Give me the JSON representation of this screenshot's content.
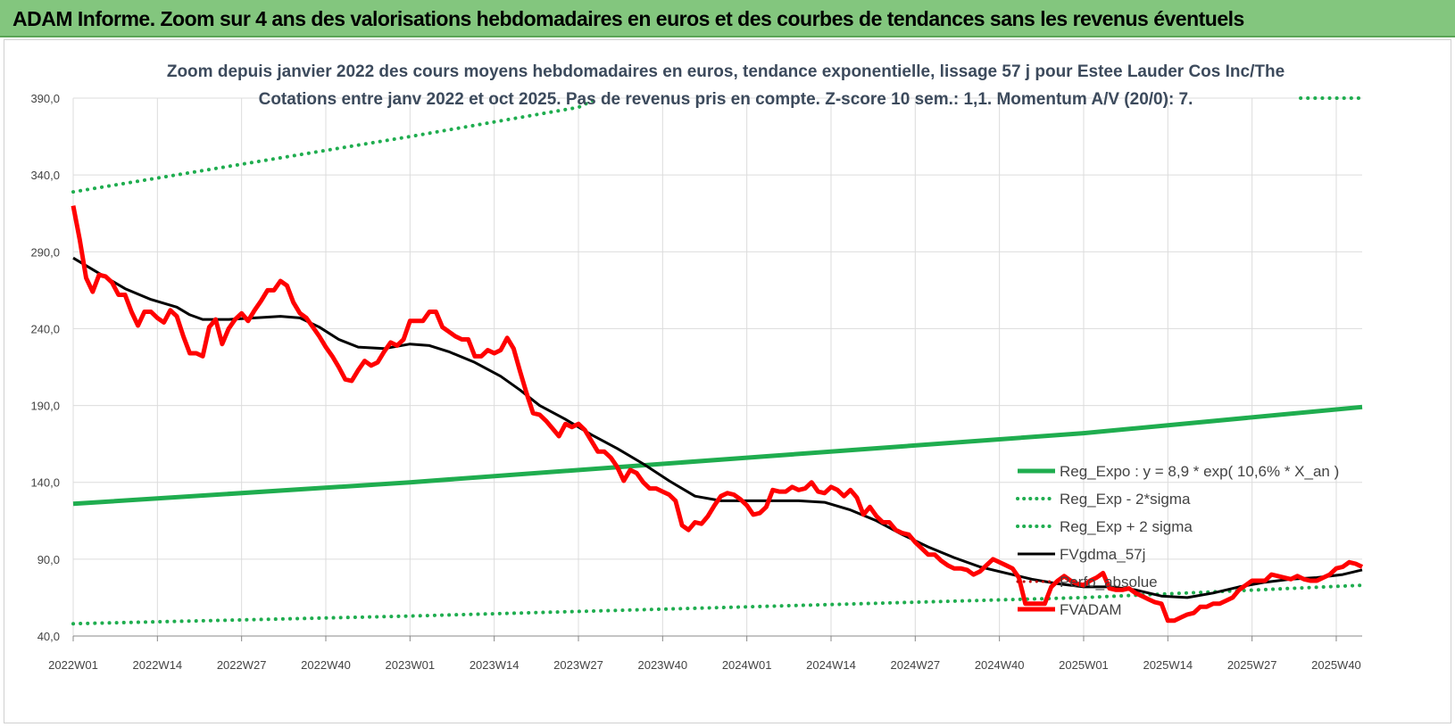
{
  "header": {
    "title": "ADAM Informe. Zoom sur 4 ans des valorisations hebdomadaires en euros et des courbes de tendances sans les revenus éventuels"
  },
  "chart_data": {
    "type": "line",
    "title": "Zoom depuis janvier 2022 des cours moyens hebdomadaires en euros, tendance exponentielle, lissage 57 j pour Estee Lauder Cos Inc/The",
    "subtitle": "Cotations entre janv 2022 et oct 2025. Pas de revenus pris en compte. Z-score 10 sem.: 1,1. Momentum A/V (20/0): 7.",
    "xlabel": "",
    "ylabel": "",
    "ylim": [
      40,
      390
    ],
    "yticks": [
      "40,0",
      "90,0",
      "140,0",
      "190,0",
      "240,0",
      "290,0",
      "340,0",
      "390,0"
    ],
    "xlim": [
      0,
      199
    ],
    "xticks": [
      {
        "label": "2022W01",
        "i": 0
      },
      {
        "label": "2022W14",
        "i": 13
      },
      {
        "label": "2022W27",
        "i": 26
      },
      {
        "label": "2022W40",
        "i": 39
      },
      {
        "label": "2023W01",
        "i": 52
      },
      {
        "label": "2023W14",
        "i": 65
      },
      {
        "label": "2023W27",
        "i": 78
      },
      {
        "label": "2023W40",
        "i": 91
      },
      {
        "label": "2024W01",
        "i": 104
      },
      {
        "label": "2024W14",
        "i": 117
      },
      {
        "label": "2024W27",
        "i": 130
      },
      {
        "label": "2024W40",
        "i": 143
      },
      {
        "label": "2025W01",
        "i": 156
      },
      {
        "label": "2025W14",
        "i": 169
      },
      {
        "label": "2025W27",
        "i": 182
      },
      {
        "label": "2025W40",
        "i": 195
      }
    ],
    "grid": true,
    "legend": "bottom-right",
    "series": [
      {
        "name": "Reg_Expo : y = 8,9 * exp( 10,6% * X_an )",
        "color": "#1fad4f",
        "style": "solid",
        "width": 5,
        "points": [
          [
            0,
            126
          ],
          [
            52,
            140
          ],
          [
            104,
            156
          ],
          [
            156,
            172
          ],
          [
            199,
            189
          ]
        ]
      },
      {
        "name": "Reg_Exp - 2*sigma",
        "color": "#1fad4f",
        "style": "dotted",
        "width": 4,
        "points": [
          [
            0,
            48
          ],
          [
            52,
            53
          ],
          [
            104,
            59
          ],
          [
            156,
            65
          ],
          [
            199,
            73
          ]
        ]
      },
      {
        "name": "Reg_Exp + 2 sigma",
        "color": "#1fad4f",
        "style": "dotted",
        "width": 4,
        "points": [
          [
            0,
            329
          ],
          [
            52,
            365
          ],
          [
            78,
            384
          ],
          [
            81,
            390
          ]
        ]
      },
      {
        "name": "FVgdma_57j",
        "color": "#000000",
        "style": "solid",
        "width": 3,
        "points": [
          [
            0,
            286
          ],
          [
            4,
            276
          ],
          [
            8,
            266
          ],
          [
            12,
            259
          ],
          [
            16,
            254
          ],
          [
            18,
            249
          ],
          [
            20,
            246
          ],
          [
            24,
            246
          ],
          [
            28,
            247
          ],
          [
            32,
            248
          ],
          [
            35,
            247
          ],
          [
            38,
            241
          ],
          [
            41,
            233
          ],
          [
            44,
            228
          ],
          [
            48,
            227
          ],
          [
            52,
            230
          ],
          [
            55,
            229
          ],
          [
            58,
            225
          ],
          [
            62,
            218
          ],
          [
            66,
            209
          ],
          [
            69,
            200
          ],
          [
            72,
            190
          ],
          [
            76,
            181
          ],
          [
            80,
            171
          ],
          [
            84,
            162
          ],
          [
            88,
            152
          ],
          [
            92,
            141
          ],
          [
            96,
            131
          ],
          [
            100,
            128
          ],
          [
            104,
            128
          ],
          [
            108,
            128
          ],
          [
            112,
            128
          ],
          [
            116,
            127
          ],
          [
            120,
            122
          ],
          [
            124,
            115
          ],
          [
            128,
            106
          ],
          [
            132,
            98
          ],
          [
            136,
            91
          ],
          [
            140,
            85
          ],
          [
            144,
            81
          ],
          [
            148,
            77
          ],
          [
            152,
            74
          ],
          [
            156,
            72
          ],
          [
            160,
            72
          ],
          [
            164,
            70
          ],
          [
            168,
            66
          ],
          [
            172,
            65
          ],
          [
            176,
            68
          ],
          [
            180,
            72
          ],
          [
            184,
            75
          ],
          [
            188,
            77
          ],
          [
            192,
            78
          ],
          [
            196,
            80
          ],
          [
            199,
            83
          ]
        ]
      },
      {
        "name": "Perfo_absolue",
        "color": "#c00000",
        "style": "dotted",
        "width": 3,
        "points": []
      },
      {
        "name": "FVADAM",
        "color": "#ff0000",
        "style": "solid",
        "width": 5,
        "points": [
          [
            0,
            320
          ],
          [
            1,
            298
          ],
          [
            2,
            273
          ],
          [
            3,
            264
          ],
          [
            4,
            275
          ],
          [
            5,
            274
          ],
          [
            6,
            270
          ],
          [
            7,
            262
          ],
          [
            8,
            262
          ],
          [
            9,
            251
          ],
          [
            10,
            242
          ],
          [
            11,
            251
          ],
          [
            12,
            251
          ],
          [
            13,
            247
          ],
          [
            14,
            244
          ],
          [
            15,
            252
          ],
          [
            16,
            248
          ],
          [
            17,
            235
          ],
          [
            18,
            224
          ],
          [
            19,
            224
          ],
          [
            20,
            222
          ],
          [
            21,
            241
          ],
          [
            22,
            246
          ],
          [
            23,
            230
          ],
          [
            24,
            240
          ],
          [
            25,
            246
          ],
          [
            26,
            250
          ],
          [
            27,
            245
          ],
          [
            28,
            252
          ],
          [
            29,
            258
          ],
          [
            30,
            265
          ],
          [
            31,
            265
          ],
          [
            32,
            271
          ],
          [
            33,
            268
          ],
          [
            34,
            257
          ],
          [
            35,
            250
          ],
          [
            36,
            247
          ],
          [
            37,
            241
          ],
          [
            38,
            235
          ],
          [
            39,
            228
          ],
          [
            40,
            222
          ],
          [
            41,
            215
          ],
          [
            42,
            207
          ],
          [
            43,
            206
          ],
          [
            44,
            213
          ],
          [
            45,
            219
          ],
          [
            46,
            216
          ],
          [
            47,
            218
          ],
          [
            48,
            225
          ],
          [
            49,
            231
          ],
          [
            50,
            229
          ],
          [
            51,
            233
          ],
          [
            52,
            245
          ],
          [
            53,
            245
          ],
          [
            54,
            245
          ],
          [
            55,
            251
          ],
          [
            56,
            251
          ],
          [
            57,
            241
          ],
          [
            58,
            238
          ],
          [
            59,
            235
          ],
          [
            60,
            233
          ],
          [
            61,
            233
          ],
          [
            62,
            222
          ],
          [
            63,
            222
          ],
          [
            64,
            226
          ],
          [
            65,
            224
          ],
          [
            66,
            226
          ],
          [
            67,
            234
          ],
          [
            68,
            227
          ],
          [
            69,
            212
          ],
          [
            70,
            198
          ],
          [
            71,
            185
          ],
          [
            72,
            184
          ],
          [
            73,
            180
          ],
          [
            74,
            175
          ],
          [
            75,
            170
          ],
          [
            76,
            178
          ],
          [
            77,
            176
          ],
          [
            78,
            178
          ],
          [
            79,
            174
          ],
          [
            80,
            167
          ],
          [
            81,
            160
          ],
          [
            82,
            160
          ],
          [
            83,
            156
          ],
          [
            84,
            150
          ],
          [
            85,
            141
          ],
          [
            86,
            148
          ],
          [
            87,
            146
          ],
          [
            88,
            140
          ],
          [
            89,
            136
          ],
          [
            90,
            136
          ],
          [
            91,
            134
          ],
          [
            92,
            132
          ],
          [
            93,
            128
          ],
          [
            94,
            112
          ],
          [
            95,
            109
          ],
          [
            96,
            114
          ],
          [
            97,
            113
          ],
          [
            98,
            118
          ],
          [
            99,
            125
          ],
          [
            100,
            131
          ],
          [
            101,
            133
          ],
          [
            102,
            132
          ],
          [
            103,
            129
          ],
          [
            104,
            125
          ],
          [
            105,
            119
          ],
          [
            106,
            120
          ],
          [
            107,
            124
          ],
          [
            108,
            135
          ],
          [
            109,
            134
          ],
          [
            110,
            134
          ],
          [
            111,
            137
          ],
          [
            112,
            135
          ],
          [
            113,
            136
          ],
          [
            114,
            140
          ],
          [
            115,
            134
          ],
          [
            116,
            133
          ],
          [
            117,
            137
          ],
          [
            118,
            135
          ],
          [
            119,
            131
          ],
          [
            120,
            135
          ],
          [
            121,
            130
          ],
          [
            122,
            119
          ],
          [
            123,
            124
          ],
          [
            124,
            118
          ],
          [
            125,
            114
          ],
          [
            126,
            114
          ],
          [
            127,
            109
          ],
          [
            128,
            107
          ],
          [
            129,
            106
          ],
          [
            130,
            101
          ],
          [
            131,
            97
          ],
          [
            132,
            93
          ],
          [
            133,
            93
          ],
          [
            134,
            89
          ],
          [
            135,
            86
          ],
          [
            136,
            84
          ],
          [
            137,
            84
          ],
          [
            138,
            83
          ],
          [
            139,
            80
          ],
          [
            140,
            82
          ],
          [
            141,
            86
          ],
          [
            142,
            90
          ],
          [
            143,
            88
          ],
          [
            144,
            86
          ],
          [
            145,
            84
          ],
          [
            146,
            78
          ],
          [
            147,
            61
          ],
          [
            148,
            61
          ],
          [
            149,
            61
          ],
          [
            150,
            61
          ],
          [
            151,
            72
          ],
          [
            152,
            76
          ],
          [
            153,
            79
          ],
          [
            154,
            76
          ],
          [
            155,
            74
          ],
          [
            156,
            73
          ],
          [
            157,
            76
          ],
          [
            158,
            78
          ],
          [
            159,
            81
          ],
          [
            160,
            71
          ],
          [
            161,
            70
          ],
          [
            162,
            70
          ],
          [
            163,
            71
          ],
          [
            164,
            68
          ],
          [
            165,
            66
          ],
          [
            166,
            64
          ],
          [
            167,
            62
          ],
          [
            168,
            61
          ],
          [
            169,
            50
          ],
          [
            170,
            50
          ],
          [
            171,
            52
          ],
          [
            172,
            54
          ],
          [
            173,
            55
          ],
          [
            174,
            59
          ],
          [
            175,
            59
          ],
          [
            176,
            61
          ],
          [
            177,
            61
          ],
          [
            178,
            63
          ],
          [
            179,
            65
          ],
          [
            180,
            70
          ],
          [
            181,
            73
          ],
          [
            182,
            76
          ],
          [
            183,
            76
          ],
          [
            184,
            76
          ],
          [
            185,
            80
          ],
          [
            186,
            79
          ],
          [
            187,
            78
          ],
          [
            188,
            77
          ],
          [
            189,
            79
          ],
          [
            190,
            77
          ],
          [
            191,
            76
          ],
          [
            192,
            76
          ],
          [
            193,
            78
          ],
          [
            194,
            80
          ],
          [
            195,
            84
          ],
          [
            196,
            85
          ],
          [
            197,
            88
          ],
          [
            198,
            87
          ],
          [
            199,
            85
          ]
        ]
      }
    ]
  }
}
